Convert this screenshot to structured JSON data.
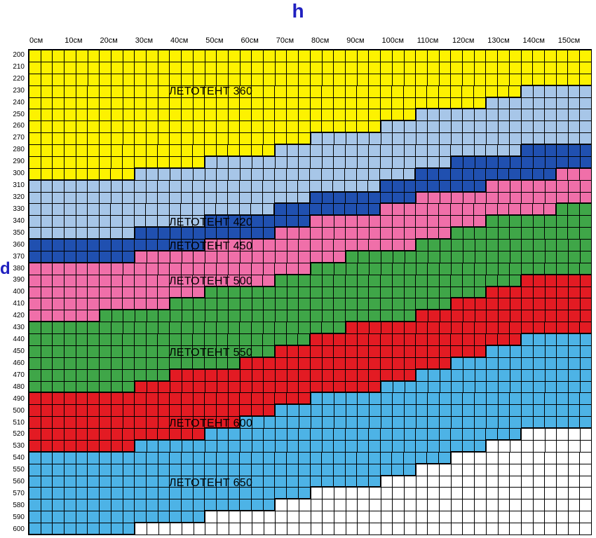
{
  "axisLabels": {
    "h": "h",
    "d": "d"
  },
  "columns": [
    "0см",
    "10см",
    "20см",
    "30см",
    "40см",
    "50см",
    "60см",
    "70см",
    "80см",
    "90см",
    "100см",
    "110см",
    "120см",
    "130см",
    "140см",
    "150см"
  ],
  "rows": [
    "200",
    "210",
    "220",
    "230",
    "240",
    "250",
    "260",
    "270",
    "280",
    "290",
    "300",
    "310",
    "320",
    "330",
    "340",
    "350",
    "360",
    "370",
    "380",
    "390",
    "400",
    "410",
    "420",
    "430",
    "440",
    "450",
    "460",
    "470",
    "480",
    "490",
    "500",
    "510",
    "520",
    "530",
    "540",
    "550",
    "560",
    "570",
    "580",
    "590",
    "600"
  ],
  "subdiv": 3,
  "chart": {
    "type": "heatmap",
    "grid_color": "#000000",
    "background_color": "#ffffff",
    "border_width": 2.5,
    "cell_border_width": 1
  },
  "zones": [
    {
      "name": "ЛЕТОТЕНТ 360",
      "color": "#fdf200",
      "labelRow": 3,
      "labelCol": 4
    },
    {
      "name": "ЛЕТОТЕНТ 420",
      "color": "#a7c6e8",
      "labelRow": 14,
      "labelCol": 4
    },
    {
      "name": "ЛЕТОТЕНТ 450",
      "color": "#2050b0",
      "labelRow": 16,
      "labelCol": 4
    },
    {
      "name": "ЛЕТОТЕНТ 500",
      "color": "#f06fa9",
      "labelRow": 19,
      "labelCol": 4
    },
    {
      "name": "ЛЕТОТЕНТ 550",
      "color": "#3fa648",
      "labelRow": 25,
      "labelCol": 4
    },
    {
      "name": "ЛЕТОТЕНТ 600",
      "color": "#e31b23",
      "labelRow": 31,
      "labelCol": 4
    },
    {
      "name": "ЛЕТОТЕНТ 650",
      "color": "#4db3e6",
      "labelRow": 36,
      "labelCol": 4
    }
  ],
  "colorMap": {
    "comment": "For each of 48 sub-columns (16 cols × 3), array of row-breaks: row index (0-based in rows[]) at which each zone starts. Length 7 for 7 zones; cells at/after last break till stair-end are zone7; below stair-end = blank.",
    "breaks": [
      [
        0,
        11,
        16,
        18,
        23,
        29,
        34
      ],
      [
        0,
        11,
        16,
        18,
        23,
        29,
        34
      ],
      [
        0,
        11,
        16,
        18,
        23,
        29,
        34
      ],
      [
        0,
        11,
        16,
        18,
        23,
        29,
        34
      ],
      [
        0,
        11,
        16,
        18,
        23,
        29,
        34
      ],
      [
        0,
        11,
        16,
        18,
        23,
        29,
        34
      ],
      [
        0,
        11,
        16,
        18,
        22,
        29,
        34
      ],
      [
        0,
        11,
        16,
        18,
        22,
        29,
        34
      ],
      [
        0,
        11,
        16,
        18,
        22,
        29,
        34
      ],
      [
        0,
        10,
        15,
        17,
        22,
        28,
        33
      ],
      [
        0,
        10,
        15,
        17,
        22,
        28,
        33
      ],
      [
        0,
        10,
        15,
        17,
        22,
        28,
        33
      ],
      [
        0,
        10,
        15,
        17,
        21,
        27,
        33
      ],
      [
        0,
        10,
        15,
        17,
        21,
        27,
        33
      ],
      [
        0,
        10,
        15,
        17,
        21,
        27,
        33
      ],
      [
        0,
        9,
        14,
        16,
        20,
        27,
        32
      ],
      [
        0,
        9,
        14,
        16,
        20,
        27,
        32
      ],
      [
        0,
        9,
        14,
        16,
        20,
        27,
        32
      ],
      [
        0,
        9,
        14,
        16,
        20,
        26,
        31
      ],
      [
        0,
        9,
        14,
        16,
        20,
        26,
        31
      ],
      [
        0,
        9,
        14,
        16,
        20,
        26,
        31
      ],
      [
        0,
        8,
        13,
        15,
        19,
        25,
        30
      ],
      [
        0,
        8,
        13,
        15,
        19,
        25,
        30
      ],
      [
        0,
        8,
        13,
        15,
        19,
        25,
        30
      ],
      [
        0,
        7,
        12,
        14,
        18,
        24,
        29
      ],
      [
        0,
        7,
        12,
        14,
        18,
        24,
        29
      ],
      [
        0,
        7,
        12,
        14,
        18,
        24,
        29
      ],
      [
        0,
        7,
        12,
        14,
        17,
        23,
        29
      ],
      [
        0,
        7,
        12,
        14,
        17,
        23,
        29
      ],
      [
        0,
        7,
        12,
        14,
        17,
        23,
        29
      ],
      [
        0,
        6,
        11,
        13,
        17,
        23,
        28
      ],
      [
        0,
        6,
        11,
        13,
        17,
        23,
        28
      ],
      [
        0,
        6,
        11,
        13,
        17,
        23,
        28
      ],
      [
        0,
        5,
        10,
        12,
        16,
        22,
        27
      ],
      [
        0,
        5,
        10,
        12,
        16,
        22,
        27
      ],
      [
        0,
        5,
        10,
        12,
        16,
        22,
        27
      ],
      [
        0,
        5,
        9,
        12,
        15,
        21,
        26
      ],
      [
        0,
        5,
        9,
        12,
        15,
        21,
        26
      ],
      [
        0,
        5,
        9,
        12,
        15,
        21,
        26
      ],
      [
        0,
        4,
        9,
        11,
        14,
        20,
        25
      ],
      [
        0,
        4,
        9,
        11,
        14,
        20,
        25
      ],
      [
        0,
        4,
        9,
        11,
        14,
        20,
        25
      ],
      [
        0,
        3,
        8,
        11,
        14,
        19,
        24
      ],
      [
        0,
        3,
        8,
        11,
        14,
        19,
        24
      ],
      [
        0,
        3,
        8,
        11,
        14,
        19,
        24
      ],
      [
        0,
        3,
        8,
        10,
        13,
        19,
        24
      ],
      [
        0,
        3,
        8,
        10,
        13,
        19,
        24
      ],
      [
        0,
        3,
        8,
        10,
        13,
        19,
        24
      ]
    ],
    "bottomStair": [
      41,
      41,
      41,
      41,
      41,
      41,
      41,
      41,
      41,
      40,
      40,
      40,
      40,
      40,
      40,
      39,
      39,
      39,
      39,
      39,
      39,
      38,
      38,
      38,
      37,
      37,
      37,
      37,
      37,
      37,
      36,
      36,
      36,
      35,
      35,
      35,
      34,
      34,
      34,
      33,
      33,
      33,
      32,
      32,
      32,
      32,
      32,
      32
    ]
  },
  "typography": {
    "axis_label_fontsize": 11,
    "row_label_fontsize": 10,
    "zone_label_fontsize": 16,
    "title_fontsize": 28,
    "title_color": "#2020c0"
  }
}
